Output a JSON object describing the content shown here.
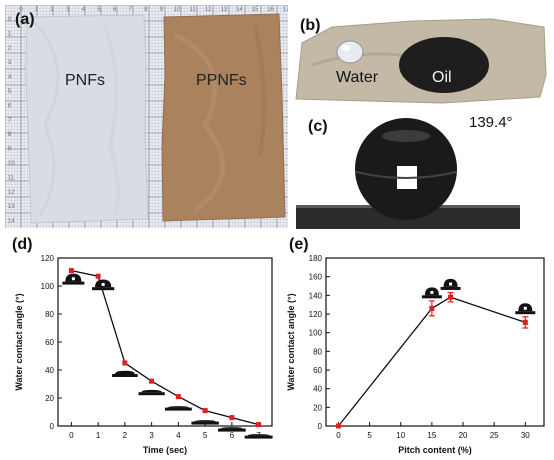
{
  "panels": {
    "a": {
      "label": "(a)",
      "sample_left": "PNFs",
      "sample_right": "PPNFs",
      "ruler_top": [
        "0",
        "1",
        "2",
        "3",
        "4",
        "5",
        "6",
        "7",
        "8",
        "9",
        "10",
        "11",
        "12",
        "13",
        "14",
        "15",
        "16",
        "17"
      ],
      "ruler_left": [
        "0",
        "1",
        "2",
        "3",
        "4",
        "5",
        "6",
        "7",
        "8",
        "9",
        "10",
        "11",
        "12",
        "13",
        "14"
      ]
    },
    "b": {
      "label": "(b)",
      "water_label": "Water",
      "oil_label": "Oil"
    },
    "c": {
      "label": "(c)",
      "angle_label": "139.4°"
    },
    "d": {
      "label": "(d)"
    },
    "e": {
      "label": "(e)"
    }
  },
  "colors": {
    "line": "#111111",
    "marker": "#e11d1d",
    "fabric_pnf": "#d7dbe2",
    "fabric_ppnf": "#a9805d",
    "grid_paper": "#e9ebf0",
    "photo_bg_b": "#cfc8ba",
    "photo_bg_c": "#bcbcbc"
  },
  "chart_data": [
    {
      "type": "line",
      "panel": "(d)",
      "xlabel": "Time (sec)",
      "ylabel": "Water contact angle (°)",
      "x": [
        0,
        1,
        2,
        3,
        4,
        5,
        6,
        7
      ],
      "y": [
        111,
        107,
        45,
        32,
        21,
        11,
        6,
        1
      ],
      "xlim": [
        -0.5,
        7.5
      ],
      "ylim": [
        0,
        120
      ],
      "xticks": [
        "0",
        "1",
        "2",
        "3",
        "4",
        "5",
        "6",
        "7"
      ],
      "yticks": [
        "0",
        "20",
        "40",
        "60",
        "80",
        "100",
        "120"
      ],
      "marker_color": "#e11d1d",
      "droplet_insets": "one droplet profile per data point, flattening with time"
    },
    {
      "type": "line",
      "panel": "(e)",
      "xlabel": "Pitch content (%)",
      "ylabel": "Water contact angle (°)",
      "x": [
        0,
        15,
        18,
        30
      ],
      "y": [
        0,
        126,
        138,
        111
      ],
      "yerr": [
        0,
        8,
        5,
        6
      ],
      "xlim": [
        -2,
        33
      ],
      "ylim": [
        0,
        180
      ],
      "xticks": [
        "0",
        "5",
        "10",
        "15",
        "20",
        "25",
        "30"
      ],
      "yticks": [
        "0",
        "20",
        "40",
        "60",
        "80",
        "100",
        "120",
        "140",
        "160",
        "180"
      ],
      "marker_color": "#e11d1d"
    }
  ]
}
